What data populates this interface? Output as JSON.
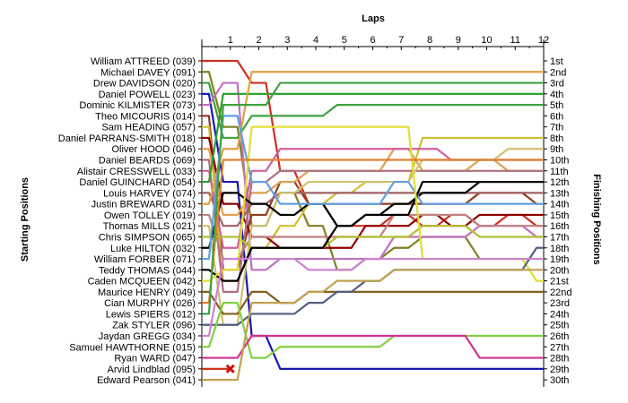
{
  "chart_data": {
    "type": "line",
    "title": "",
    "xlabel": "Laps",
    "ylabel_left": "Starting Positions",
    "ylabel_right": "Finishing Positions",
    "x_ticks": [
      "1",
      "2",
      "3",
      "4",
      "5",
      "6",
      "7",
      "8",
      "9",
      "10",
      "11",
      "12"
    ],
    "y_range": [
      1,
      30
    ],
    "finishing_labels": [
      "1st",
      "2nd",
      "3rd",
      "4th",
      "5th",
      "6th",
      "7th",
      "8th",
      "9th",
      "10th",
      "11th",
      "12th",
      "13th",
      "14th",
      "15th",
      "16th",
      "17th",
      "18th",
      "19th",
      "20th",
      "21st",
      "22nd",
      "23rd",
      "24th",
      "25th",
      "26th",
      "27th",
      "28th",
      "29th",
      "30th"
    ],
    "series": [
      {
        "name": "William ATTREED (039)",
        "color": "#d03020",
        "positions": [
          1,
          1,
          3,
          11,
          14,
          16,
          16,
          15,
          16,
          15,
          16,
          15,
          16
        ]
      },
      {
        "name": "Michael DAVEY (091)",
        "color": "#808020",
        "positions": [
          2,
          7,
          16,
          13,
          16,
          20,
          19,
          18,
          17,
          17,
          19,
          19,
          19
        ]
      },
      {
        "name": "Drew DAVIDSON (020)",
        "color": "#40a040",
        "positions": [
          3,
          8,
          6,
          6,
          6,
          5,
          5,
          5,
          5,
          5,
          5,
          5,
          5
        ]
      },
      {
        "name": "Daniel POWELL (023)",
        "color": "#1818b0",
        "positions": [
          4,
          12,
          26,
          29,
          29,
          29,
          29,
          29,
          29,
          29,
          29,
          29,
          29
        ]
      },
      {
        "name": "Dominic KILMISTER (073)",
        "color": "#c070c0",
        "positions": [
          5,
          3,
          20,
          19,
          19,
          19,
          19,
          17,
          17,
          17,
          16,
          16,
          17
        ]
      },
      {
        "name": "Theo MICOURIS (014)",
        "color": "#904020",
        "positions": [
          6,
          20,
          15,
          12,
          14,
          14,
          14,
          14,
          14,
          14,
          13,
          13,
          14
        ]
      },
      {
        "name": "Sam HEADING (057)",
        "color": "#d0c030",
        "positions": [
          7,
          21,
          18,
          16,
          14,
          13,
          12,
          12,
          8,
          8,
          8,
          8,
          8
        ]
      },
      {
        "name": "Daniel PARRANS-SMITH (018)",
        "color": "#900000",
        "positions": [
          8,
          14,
          17,
          18,
          18,
          18,
          16,
          16,
          15,
          16,
          15,
          15,
          15
        ]
      },
      {
        "name": "Oliver HOOD (046)",
        "color": "#e0a050",
        "positions": [
          9,
          15,
          13,
          12,
          11,
          11,
          11,
          9,
          11,
          11,
          10,
          11,
          11
        ]
      },
      {
        "name": "Daniel BEARDS (069)",
        "color": "#b07080",
        "positions": [
          10,
          22,
          12,
          11,
          11,
          11,
          11,
          11,
          11,
          11,
          11,
          11,
          11
        ]
      },
      {
        "name": "Alistair CRESSWELL (033)",
        "color": "#d060a0",
        "positions": [
          11,
          18,
          11,
          9,
          9,
          9,
          9,
          9,
          9,
          10,
          10,
          10,
          10
        ]
      },
      {
        "name": "Daniel GUINCHARD (054)",
        "color": "#30a030",
        "positions": [
          12,
          4,
          4,
          4,
          4,
          4,
          4,
          4,
          4,
          4,
          4,
          4,
          4
        ]
      },
      {
        "name": "Louis HARVEY (074)",
        "color": "#a06060",
        "positions": [
          13,
          16,
          14,
          13,
          13,
          13,
          13,
          13,
          13,
          13,
          13,
          13,
          13
        ]
      },
      {
        "name": "Justin BREWARD (031)",
        "color": "#e0a040",
        "positions": [
          14,
          9,
          2,
          2,
          2,
          2,
          2,
          2,
          2,
          2,
          2,
          2,
          2
        ]
      },
      {
        "name": "Owen TOLLEY (019)",
        "color": "#c08080",
        "positions": [
          15,
          19,
          17,
          17,
          17,
          17,
          17,
          15,
          15,
          15,
          16,
          16,
          16
        ]
      },
      {
        "name": "Thomas MILLS (021)",
        "color": "#d0c070",
        "positions": [
          16,
          25,
          16,
          13,
          12,
          12,
          12,
          12,
          10,
          10,
          10,
          9,
          9
        ]
      },
      {
        "name": "Chris SIMPSON (065)",
        "color": "#b0c030",
        "positions": [
          17,
          17,
          18,
          18,
          18,
          17,
          17,
          17,
          16,
          16,
          17,
          17,
          17
        ]
      },
      {
        "name": "Luke HILTON (032)",
        "color": "#000000",
        "positions": [
          18,
          13,
          14,
          15,
          14,
          16,
          15,
          14,
          13,
          13,
          12,
          12,
          12
        ]
      },
      {
        "name": "William FORBER (071)",
        "color": "#60a0e0",
        "positions": [
          19,
          6,
          12,
          14,
          14,
          14,
          14,
          12,
          14,
          14,
          14,
          14,
          14
        ]
      },
      {
        "name": "Teddy THOMAS (044)",
        "color": "#000000",
        "positions": [
          20,
          21,
          18,
          18,
          18,
          16,
          15,
          15,
          12,
          12,
          12,
          12,
          12
        ]
      },
      {
        "name": "Caden MCQUEEN (042)",
        "color": "#e0e030",
        "positions": [
          21,
          20,
          7,
          7,
          7,
          7,
          7,
          7,
          19,
          19,
          19,
          19,
          21
        ]
      },
      {
        "name": "Maurice HENRY (049)",
        "color": "#806020",
        "positions": [
          22,
          24,
          22,
          23,
          22,
          22,
          22,
          22,
          22,
          22,
          22,
          22,
          22
        ]
      },
      {
        "name": "Cian MURPHY (026)",
        "color": "#e08030",
        "positions": [
          23,
          10,
          10,
          10,
          10,
          10,
          10,
          10,
          10,
          10,
          10,
          10,
          10
        ]
      },
      {
        "name": "Lewis SPIERS (012)",
        "color": "#40a040",
        "positions": [
          24,
          5,
          5,
          3,
          3,
          3,
          3,
          3,
          3,
          3,
          3,
          3,
          3
        ]
      },
      {
        "name": "Zak STYLER (096)",
        "color": "#506080",
        "positions": [
          25,
          25,
          24,
          24,
          23,
          22,
          21,
          20,
          20,
          20,
          20,
          20,
          18
        ]
      },
      {
        "name": "Jaydan GREGG (034)",
        "color": "#d080d0",
        "positions": [
          26,
          19,
          19,
          19,
          20,
          20,
          19,
          19,
          19,
          19,
          19,
          19,
          19
        ]
      },
      {
        "name": "Samuel HAWTHORNE (015)",
        "color": "#80d040",
        "positions": [
          27,
          23,
          28,
          27,
          27,
          27,
          27,
          26,
          26,
          26,
          26,
          26,
          26
        ]
      },
      {
        "name": "Ryan WARD (047)",
        "color": "#d03090",
        "positions": [
          28,
          28,
          26,
          26,
          26,
          26,
          26,
          26,
          26,
          26,
          28,
          28,
          28
        ]
      },
      {
        "name": "Arvid Lindblad (095)",
        "color": "#d03020",
        "positions": [
          29,
          29,
          null,
          null,
          null,
          null,
          null,
          null,
          null,
          null,
          null,
          null,
          null
        ]
      },
      {
        "name": "Edward Pearson (041)",
        "color": "#c0a050",
        "positions": [
          30,
          30,
          23,
          23,
          22,
          21,
          21,
          20,
          20,
          20,
          20,
          20,
          20
        ]
      }
    ],
    "annotations": [
      {
        "type": "retired-marker",
        "lap": 1,
        "position": 29
      }
    ]
  }
}
